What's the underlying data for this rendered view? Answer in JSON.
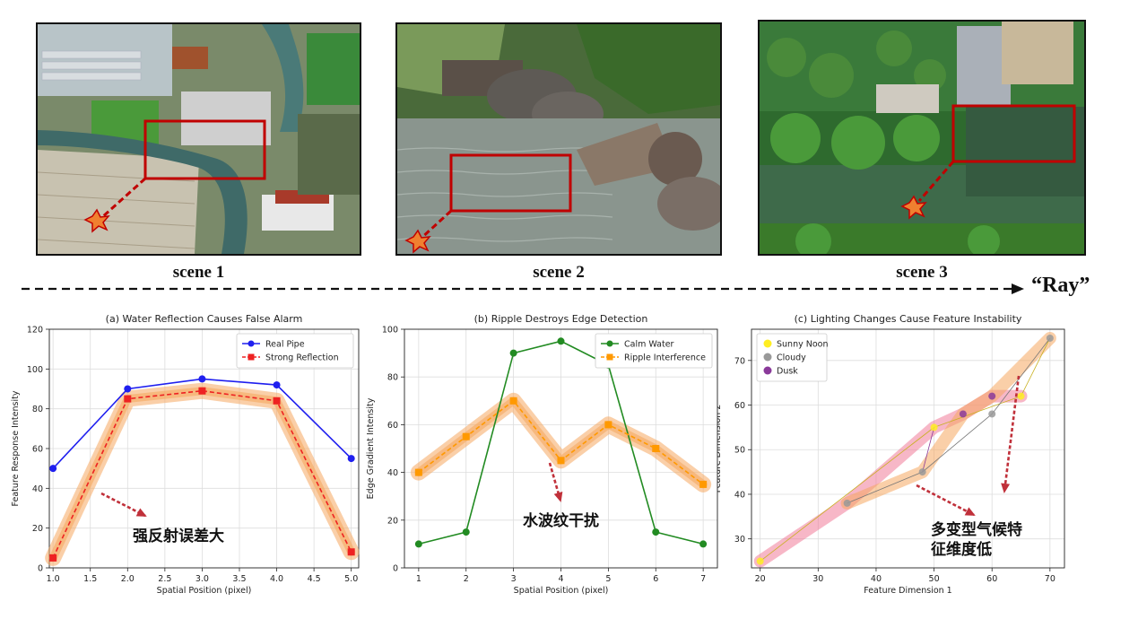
{
  "scenes": [
    {
      "caption": "scene 1"
    },
    {
      "caption": "scene 2"
    },
    {
      "caption": "scene 3"
    }
  ],
  "ray_label": "“Ray”",
  "colors": {
    "box": "#c00000",
    "star": "#f08030",
    "arrow": "#c0303a",
    "glow": "#f5a860",
    "glow_pink": "#f07090"
  },
  "chart_data": [
    {
      "type": "line",
      "title": "(a) Water Reflection Causes False Alarm",
      "xlabel": "Spatial Position (pixel)",
      "ylabel": "Feature Response Intensity",
      "x": [
        1.0,
        2.0,
        3.0,
        4.0,
        5.0
      ],
      "xlim": [
        0.95,
        5.1
      ],
      "ylim": [
        0,
        120
      ],
      "xticks": [
        "1.0",
        "1.5",
        "2.0",
        "2.5",
        "3.0",
        "3.5",
        "4.0",
        "4.5",
        "5.0"
      ],
      "yticks": [
        "0",
        "20",
        "40",
        "60",
        "80",
        "100",
        "120"
      ],
      "series": [
        {
          "name": "Real Pipe",
          "color": "#1f1fef",
          "marker": "circle",
          "values": [
            50,
            90,
            95,
            92,
            55
          ]
        },
        {
          "name": "Strong Reflection",
          "color": "#ee2222",
          "marker": "square",
          "dashed": true,
          "values": [
            5,
            85,
            89,
            84,
            8
          ]
        }
      ],
      "legend": "top-right",
      "grid": true,
      "annotation": "强反射误差大"
    },
    {
      "type": "line",
      "title": "(b) Ripple Destroys Edge Detection",
      "xlabel": "Spatial Position (pixel)",
      "ylabel": "Edge Gradient Intensity",
      "x": [
        1,
        2,
        3,
        4,
        5,
        6,
        7
      ],
      "xlim": [
        0.7,
        7.3
      ],
      "ylim": [
        0,
        100
      ],
      "xticks": [
        "1",
        "2",
        "3",
        "4",
        "5",
        "6",
        "7"
      ],
      "yticks": [
        "0",
        "20",
        "40",
        "60",
        "80",
        "100"
      ],
      "series": [
        {
          "name": "Calm Water",
          "color": "#228b22",
          "marker": "circle",
          "values": [
            10,
            15,
            90,
            95,
            85,
            15,
            10
          ]
        },
        {
          "name": "Ripple Interference",
          "color": "#ff9900",
          "marker": "square",
          "dashed": true,
          "values": [
            40,
            55,
            70,
            45,
            60,
            50,
            35
          ]
        }
      ],
      "legend": "top-right",
      "grid": true,
      "annotation": "水波纹干扰"
    },
    {
      "type": "scatter",
      "title": "(c) Lighting Changes Cause Feature Instability",
      "xlabel": "Feature Dimension 1",
      "ylabel": "Feature Dimension 2",
      "xlim": [
        18.5,
        72.5
      ],
      "ylim": [
        23.5,
        77
      ],
      "xticks": [
        "20",
        "30",
        "40",
        "50",
        "60",
        "70"
      ],
      "yticks": [
        "30",
        "40",
        "50",
        "60",
        "70"
      ],
      "series": [
        {
          "name": "Sunny Noon",
          "color": "#ffee22",
          "points": [
            [
              20,
              25
            ],
            [
              50,
              55
            ],
            [
              65,
              62
            ]
          ]
        },
        {
          "name": "Cloudy",
          "color": "#999999",
          "points": [
            [
              35,
              38
            ],
            [
              48,
              45
            ],
            [
              60,
              58
            ],
            [
              70,
              75
            ]
          ]
        },
        {
          "name": "Dusk",
          "color": "#8a3a9a",
          "points": [
            [
              55,
              58
            ],
            [
              60,
              62
            ]
          ]
        }
      ],
      "legend": "top-left",
      "grid": true,
      "annotation": [
        "多变型气候特",
        "征维度低"
      ]
    }
  ]
}
